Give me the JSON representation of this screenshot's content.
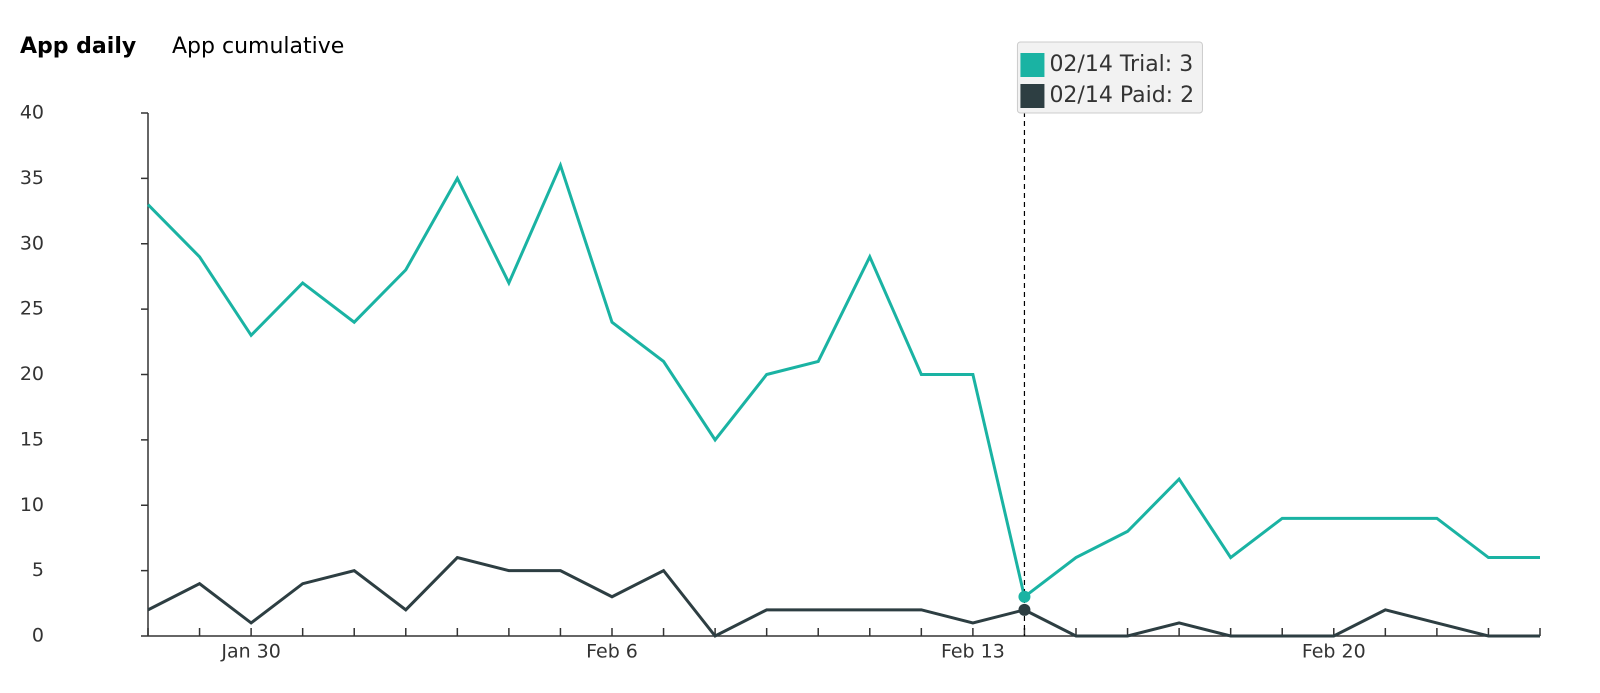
{
  "tabs": [
    "App daily",
    "App cumulative"
  ],
  "chart_data": {
    "type": "line",
    "categories": [
      null,
      null,
      "Jan 30",
      null,
      null,
      null,
      null,
      null,
      null,
      "Feb 6",
      null,
      null,
      null,
      null,
      null,
      null,
      "Feb 13",
      null,
      null,
      null,
      null,
      null,
      null,
      "Feb 20",
      null,
      null,
      null,
      null
    ],
    "series": [
      {
        "name": "Trial",
        "color": "#1ab3a3",
        "values": [
          33,
          29,
          23,
          27,
          24,
          28,
          35,
          27,
          36,
          24,
          21,
          15,
          20,
          21,
          29,
          20,
          20,
          3,
          6,
          8,
          12,
          6,
          9,
          9,
          9,
          9,
          6,
          6
        ]
      },
      {
        "name": "Paid",
        "color": "#2d3e42",
        "values": [
          2,
          4,
          1,
          4,
          5,
          2,
          6,
          5,
          5,
          3,
          5,
          0,
          2,
          2,
          2,
          2,
          1,
          2,
          0,
          0,
          1,
          0,
          0,
          0,
          2,
          1,
          0,
          0
        ]
      }
    ],
    "ylim": [
      0,
      40
    ],
    "yticks": [
      0,
      5,
      10,
      15,
      20,
      25,
      30,
      35,
      40
    ],
    "tooltip": {
      "index": 17,
      "lines": [
        "02/14 Trial: 3",
        "02/14 Paid: 2"
      ]
    }
  }
}
